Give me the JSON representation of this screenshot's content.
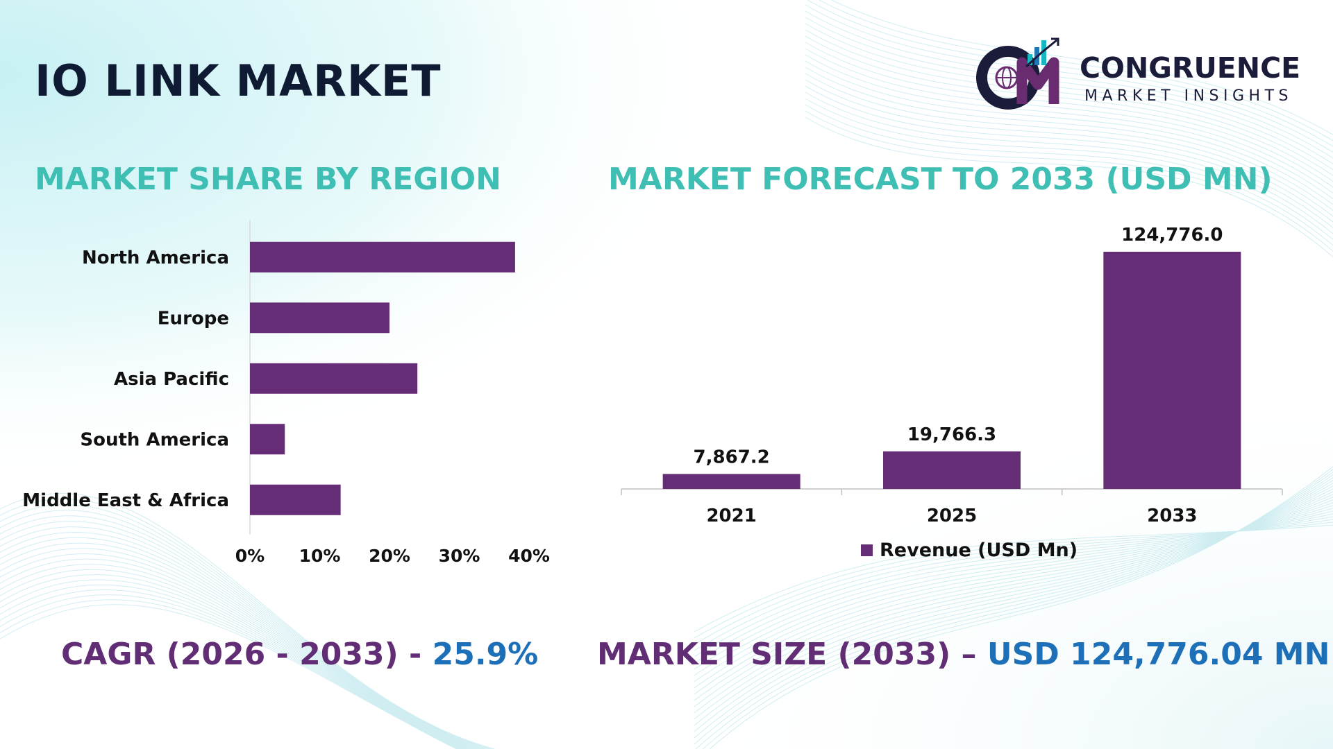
{
  "title": "IO LINK MARKET",
  "brand": {
    "name": "CONGRUENCE",
    "tagline": "MARKET INSIGHTS",
    "colors": {
      "dark": "#1b1b3a",
      "purple": "#6a2c70",
      "teal": "#17b7c2",
      "blue": "#1f77b4"
    }
  },
  "colors": {
    "title": "#0f1b33",
    "section_title": "#3fbfb3",
    "bar": "#662d77",
    "stat_label": "#612d74",
    "stat_value": "#1d70b8",
    "text": "#111111"
  },
  "sections": {
    "region_title": "MARKET SHARE BY REGION",
    "forecast_title": "MARKET FORECAST TO 2033 (USD MN)"
  },
  "stats": {
    "cagr_label": "CAGR (2026 - 2033) - ",
    "cagr_value": "25.9%",
    "size_label": "MARKET SIZE (2033) – ",
    "size_value": "USD 124,776.04 MN"
  },
  "chart_data": [
    {
      "type": "bar",
      "orientation": "horizontal",
      "categories": [
        "North America",
        "Europe",
        "Asia Pacific",
        "South America",
        "Middle East & Africa"
      ],
      "values": [
        38,
        20,
        24,
        5,
        13
      ],
      "xlim": [
        0,
        40
      ],
      "xticks": [
        "0%",
        "10%",
        "20%",
        "30%",
        "40%"
      ],
      "grid": false
    },
    {
      "type": "bar",
      "categories": [
        "2021",
        "2025",
        "2033"
      ],
      "series": [
        {
          "name": "Revenue (USD Mn)",
          "values": [
            7867.2,
            19766.3,
            124776.0
          ]
        }
      ],
      "data_labels": [
        "7,867.2",
        "19,766.3",
        "124,776.0"
      ],
      "ylim": [
        0,
        124776.0
      ],
      "legend": "bottom",
      "grid": false
    }
  ]
}
